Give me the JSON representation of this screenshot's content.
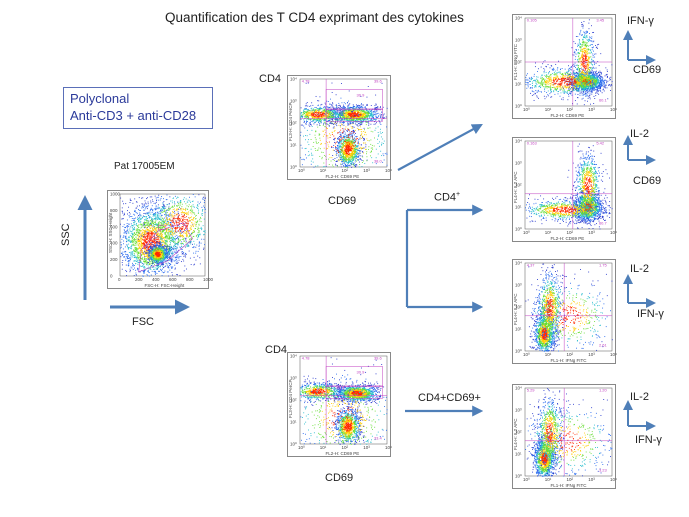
{
  "title": "Quantification des T CD4 exprimant des cytokines",
  "stimulation": {
    "line1": "Polyclonal",
    "line2": "Anti-CD3 + anti-CD28"
  },
  "patient": "Pat 17005EM",
  "ssc_plot": {
    "y_axis_big": "SSC",
    "x_axis_big": "FSC",
    "y_label": "SSC-H: SSC-Height",
    "x_label": "FSC-H: FSC-Height",
    "ticks": [
      "0",
      "200",
      "400",
      "600",
      "800",
      "1000"
    ]
  },
  "cd4_top": {
    "y_axis": "CD4",
    "x_axis": "CD69",
    "y_label": "FL3-H: CD4 PerCP",
    "x_label": "FL2-H: CD69 PE",
    "q_ul": "4.78",
    "q_ur": "39.6",
    "gate": "30.9",
    "gate2": "32.5",
    "q_ll": "",
    "q_lr": "38.0"
  },
  "cd4_bottom": {
    "y_axis": "CD4",
    "x_axis": "CD69",
    "y_label": "FL3-H: CD4 PerCP",
    "x_label": "FL2-H: CD69 PE",
    "q_ul": "4.78",
    "q_ur": "39.6",
    "gate": "30.9",
    "gate2": "35.5",
    "q_lr": "33.4"
  },
  "arrows": {
    "cd4_plus": "CD4",
    "cd4_plus_sup": "+",
    "cd4cd69": "CD4+CD69+"
  },
  "right_plots": [
    {
      "y_axis": "IFN-γ",
      "x_axis": "CD69",
      "y_label": "FL1-H: IFNg FITC",
      "x_label": "FL2-H: CD69 PE",
      "q_ul": "0.105",
      "q_ur": "3.45",
      "q_lr": "60.1"
    },
    {
      "y_axis": "IL-2",
      "x_axis": "CD69",
      "y_label": "FL4-H: IL2 APC",
      "x_label": "FL2-H: CD69 PE",
      "q_ul": "0.163",
      "q_ur": "5.42",
      "q_lr": "60.7"
    },
    {
      "y_axis": "IL-2",
      "x_axis": "IFN-γ",
      "y_label": "FL4-H: IL2 APC",
      "x_label": "FL1-H: IFNg FITC",
      "q_ul": "4.37",
      "q_ur": "1.75",
      "q_lr": "2.61"
    },
    {
      "y_axis": "IL-2",
      "x_axis": "IFN-γ",
      "y_label": "FL4-H: IL2 APC",
      "x_label": "FL1-H: IFNg FITC",
      "q_ul": "5.29",
      "q_ur": "1.20",
      "q_lr": "3.23"
    }
  ],
  "log_ticks": [
    "10⁰",
    "10¹",
    "10²",
    "10³",
    "10⁴"
  ],
  "colors": {
    "arrow": "#4f7fb8",
    "gate": "#c040c0",
    "text_blue": "#2b3a9a"
  }
}
